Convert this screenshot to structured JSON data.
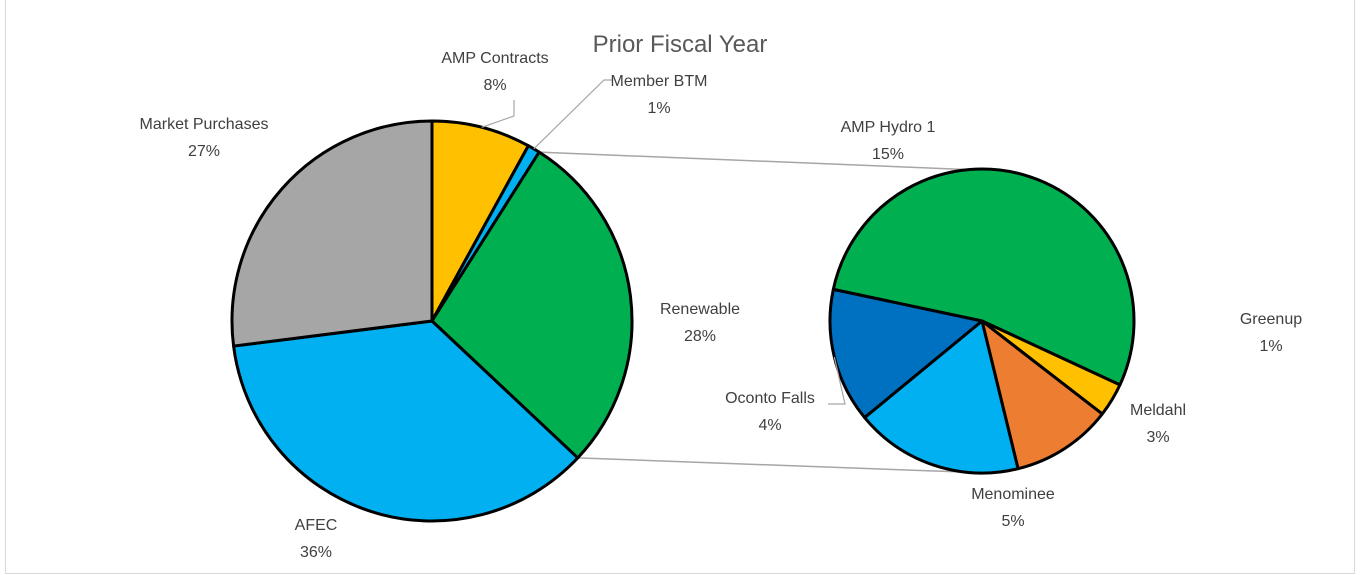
{
  "chart_data": {
    "type": "pie",
    "variant": "pie-of-pie",
    "title": "Prior Fiscal Year",
    "main_pie": {
      "slices": [
        {
          "label": "AMP Contracts",
          "pct_label": "8%",
          "value": 8,
          "color": "#FFC000"
        },
        {
          "label": "Member BTM",
          "pct_label": "1%",
          "value": 1,
          "color": "#00B0F0"
        },
        {
          "label": "Renewable",
          "pct_label": "28%",
          "value": 28,
          "color": "#00B050"
        },
        {
          "label": "AFEC",
          "pct_label": "36%",
          "value": 36,
          "color": "#00B0F0"
        },
        {
          "label": "Market Purchases",
          "pct_label": "27%",
          "value": 27,
          "color": "#A6A6A6"
        }
      ]
    },
    "secondary_pie": {
      "breakdown_of": "Renewable",
      "slices": [
        {
          "label": "AMP Hydro 1",
          "pct_label": "15%",
          "value": 15,
          "color": "#00B050"
        },
        {
          "label": "Greenup",
          "pct_label": "1%",
          "value": 1,
          "color": "#FFC000"
        },
        {
          "label": "Meldahl",
          "pct_label": "3%",
          "value": 3,
          "color": "#ED7D31"
        },
        {
          "label": "Menominee",
          "pct_label": "5%",
          "value": 5,
          "color": "#00B0F0"
        },
        {
          "label": "Oconto Falls",
          "pct_label": "4%",
          "value": 4,
          "color": "#0070C0"
        }
      ]
    },
    "legend": "none"
  }
}
